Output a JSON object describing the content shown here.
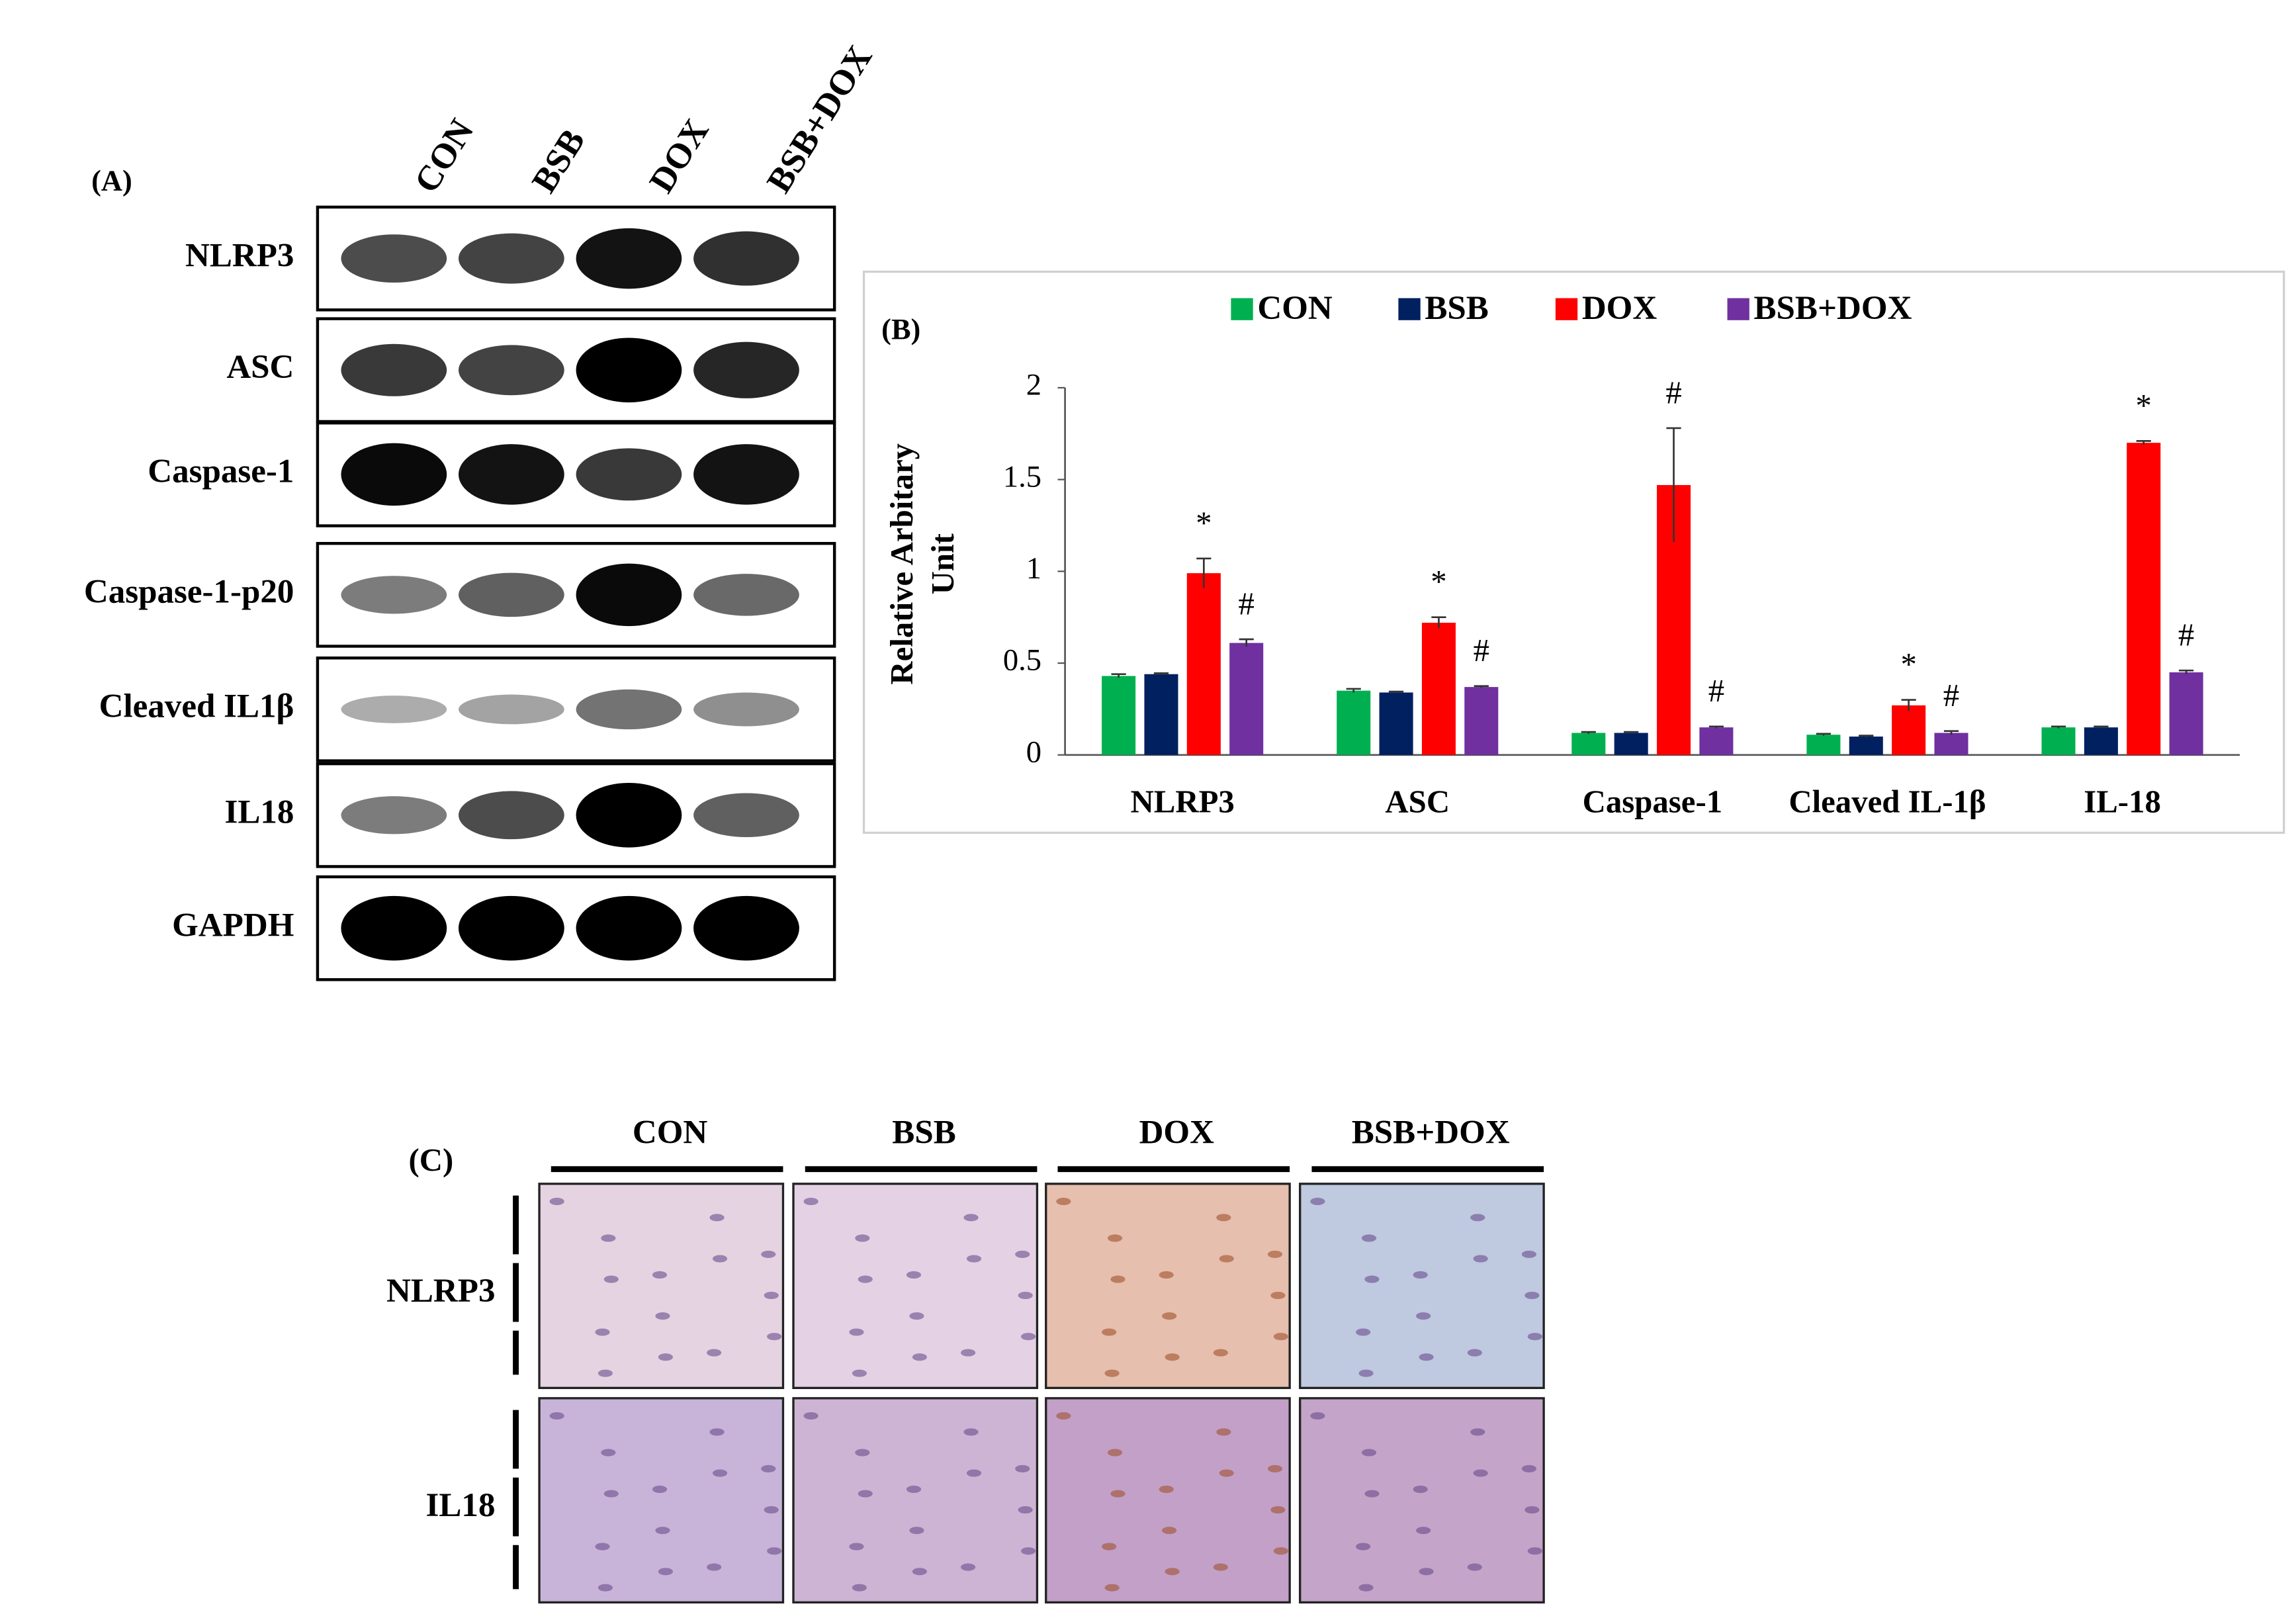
{
  "chart_data": {
    "type": "bar",
    "panel_label": "(B)",
    "y_label": [
      "Relative Arbitary",
      "Unit"
    ],
    "categories": [
      "NLRP3",
      "ASC",
      "Caspase-1",
      "Cleaved IL-1β",
      "IL-18"
    ],
    "series": [
      {
        "name": "CON",
        "color": "#00b050",
        "values": [
          0.43,
          0.35,
          0.12,
          0.11,
          0.15
        ],
        "errors": [
          0.01,
          0.01,
          0.005,
          0.005,
          0.005
        ],
        "annotations": [
          null,
          null,
          null,
          null,
          null
        ]
      },
      {
        "name": "BSB",
        "color": "#002060",
        "values": [
          0.44,
          0.34,
          0.12,
          0.1,
          0.15
        ],
        "errors": [
          0.005,
          0.005,
          0.005,
          0.005,
          0.005
        ],
        "annotations": [
          null,
          null,
          null,
          null,
          null
        ]
      },
      {
        "name": "DOX",
        "color": "#ff0000",
        "values": [
          0.99,
          0.72,
          1.47,
          0.27,
          1.7
        ],
        "errors": [
          0.08,
          0.03,
          0.31,
          0.03,
          0.01
        ],
        "annotations": [
          "*",
          "*",
          "#",
          "*",
          "*"
        ]
      },
      {
        "name": "BSB+DOX",
        "color": "#7030a0",
        "values": [
          0.61,
          0.37,
          0.15,
          0.12,
          0.45
        ],
        "errors": [
          0.02,
          0.005,
          0.005,
          0.01,
          0.01
        ],
        "annotations": [
          "#",
          "#",
          "#",
          "#",
          "#"
        ]
      }
    ],
    "ylim": [
      0,
      2
    ],
    "yticks": [
      0,
      0.5,
      1,
      1.5,
      2
    ]
  },
  "panel_a": {
    "label": "(A)",
    "lanes": [
      "CON",
      "BSB",
      "DOX",
      "BSB+DOX"
    ],
    "rows": [
      "NLRP3",
      "ASC",
      "Caspase-1",
      "Caspase-1-p20",
      "Cleaved IL1β",
      "IL18",
      "GAPDH"
    ]
  },
  "panel_c": {
    "label": "(C)",
    "columns": [
      "CON",
      "BSB",
      "DOX",
      "BSB+DOX"
    ],
    "rows": [
      "NLRP3",
      "IL18"
    ]
  }
}
